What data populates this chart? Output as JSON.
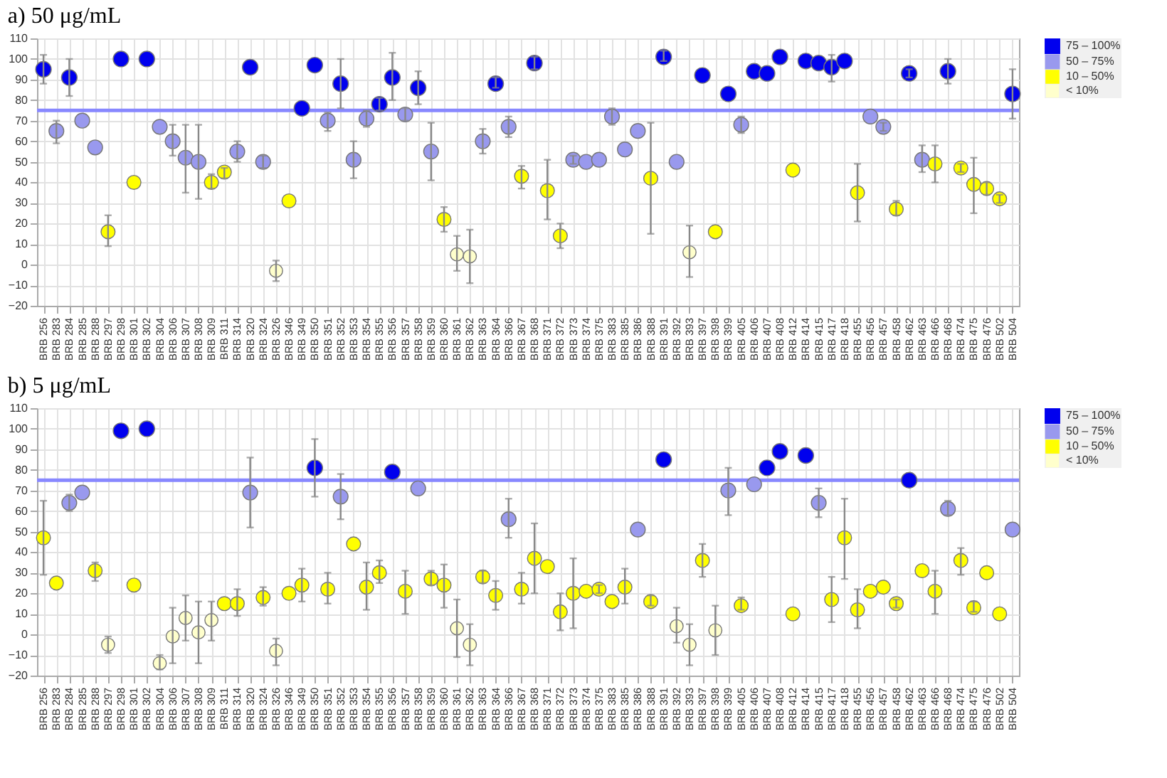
{
  "chart_data": [
    {
      "type": "scatter",
      "title": "a) 50 μg/mL",
      "categories": [
        "BRB 256",
        "BRB 283",
        "BRB 284",
        "BRB 285",
        "BRB 288",
        "BRB 297",
        "BRB 298",
        "BRB 301",
        "BRB 302",
        "BRB 304",
        "BRB 306",
        "BRB 307",
        "BRB 308",
        "BRB 309",
        "BRB 311",
        "BRB 314",
        "BRB 320",
        "BRB 324",
        "BRB 326",
        "BRB 346",
        "BRB 349",
        "BRB 350",
        "BRB 351",
        "BRB 352",
        "BRB 353",
        "BRB 354",
        "BRB 355",
        "BRB 356",
        "BRB 357",
        "BRB 358",
        "BRB 359",
        "BRB 360",
        "BRB 361",
        "BRB 362",
        "BRB 363",
        "BRB 364",
        "BRB 366",
        "BRB 367",
        "BRB 368",
        "BRB 371",
        "BRB 372",
        "BRB 373",
        "BRB 374",
        "BRB 375",
        "BRB 383",
        "BRB 385",
        "BRB 386",
        "BRB 388",
        "BRB 391",
        "BRB 392",
        "BRB 393",
        "BRB 397",
        "BRB 398",
        "BRB 399",
        "BRB 405",
        "BRB 406",
        "BRB 407",
        "BRB 408",
        "BRB 412",
        "BRB 414",
        "BRB 415",
        "BRB 417",
        "BRB 418",
        "BRB 455",
        "BRB 456",
        "BRB 457",
        "BRB 458",
        "BRB 462",
        "BRB 463",
        "BRB 466",
        "BRB 468",
        "BRB 474",
        "BRB 475",
        "BRB 476",
        "BRB 502",
        "BRB 504"
      ],
      "series": [
        {
          "name": "75 – 100%",
          "color": "#0000ee",
          "values": [
            95,
            null,
            91,
            null,
            null,
            null,
            100,
            null,
            100,
            null,
            null,
            null,
            null,
            null,
            null,
            null,
            96,
            null,
            null,
            null,
            76,
            97,
            null,
            88,
            null,
            null,
            78,
            91,
            null,
            86,
            null,
            null,
            null,
            null,
            null,
            88,
            null,
            null,
            98,
            null,
            null,
            null,
            null,
            null,
            null,
            null,
            null,
            null,
            101,
            null,
            null,
            92,
            null,
            83,
            null,
            94,
            93,
            101,
            null,
            99,
            98,
            96,
            99,
            null,
            null,
            null,
            null,
            93,
            null,
            null,
            94,
            null,
            null,
            null,
            null,
            83
          ],
          "errors": [
            [
              88,
              102
            ],
            null,
            [
              82,
              100
            ],
            null,
            null,
            null,
            null,
            null,
            null,
            null,
            null,
            null,
            null,
            null,
            null,
            null,
            null,
            null,
            null,
            null,
            null,
            null,
            null,
            [
              76,
              100
            ],
            null,
            null,
            [
              75,
              81
            ],
            [
              80,
              103
            ],
            null,
            [
              78,
              94
            ],
            null,
            null,
            null,
            null,
            null,
            [
              86,
              91
            ],
            null,
            null,
            [
              95,
              101
            ],
            null,
            null,
            null,
            null,
            null,
            null,
            null,
            null,
            null,
            [
              99,
              104
            ],
            null,
            null,
            null,
            null,
            null,
            null,
            null,
            null,
            null,
            null,
            null,
            null,
            [
              89,
              102
            ],
            null,
            null,
            null,
            null,
            null,
            [
              91,
              95
            ],
            null,
            null,
            [
              88,
              100
            ],
            null,
            null,
            null,
            null,
            [
              71,
              95
            ]
          ]
        },
        {
          "name": "50 – 75%",
          "color": "#9999ee",
          "values": [
            null,
            65,
            null,
            70,
            57,
            null,
            null,
            null,
            null,
            67,
            60,
            52,
            50,
            null,
            null,
            55,
            null,
            50,
            null,
            null,
            null,
            null,
            70,
            null,
            51,
            71,
            null,
            null,
            73,
            null,
            55,
            null,
            null,
            null,
            60,
            null,
            67,
            null,
            null,
            null,
            null,
            51,
            50,
            51,
            72,
            56,
            65,
            null,
            null,
            50,
            null,
            null,
            null,
            null,
            68,
            null,
            null,
            null,
            null,
            null,
            null,
            null,
            null,
            null,
            72,
            67,
            null,
            null,
            51,
            null,
            null,
            null,
            null,
            null,
            null,
            null
          ],
          "errors": [
            null,
            [
              59,
              70
            ],
            null,
            null,
            null,
            null,
            null,
            null,
            null,
            null,
            [
              53,
              68
            ],
            [
              35,
              68
            ],
            [
              32,
              68
            ],
            null,
            null,
            [
              50,
              60
            ],
            null,
            [
              47,
              53
            ],
            null,
            null,
            null,
            null,
            [
              65,
              74
            ],
            null,
            [
              42,
              60
            ],
            [
              67,
              75
            ],
            null,
            null,
            [
              70,
              76
            ],
            null,
            [
              41,
              69
            ],
            null,
            null,
            null,
            [
              54,
              66
            ],
            null,
            [
              62,
              72
            ],
            null,
            null,
            null,
            null,
            [
              49,
              53
            ],
            null,
            null,
            [
              68,
              76
            ],
            null,
            null,
            null,
            null,
            null,
            null,
            null,
            null,
            null,
            [
              64,
              72
            ],
            null,
            null,
            null,
            null,
            null,
            null,
            null,
            null,
            null,
            null,
            [
              65,
              69
            ],
            null,
            null,
            [
              45,
              58
            ],
            null,
            null,
            null,
            null,
            null,
            null,
            null
          ]
        },
        {
          "name": "10 – 50%",
          "color": "#ffff00",
          "values": [
            null,
            null,
            null,
            null,
            null,
            16,
            null,
            40,
            null,
            null,
            null,
            null,
            null,
            40,
            45,
            null,
            null,
            null,
            null,
            31,
            null,
            null,
            null,
            null,
            null,
            null,
            null,
            null,
            null,
            null,
            null,
            22,
            null,
            null,
            null,
            null,
            null,
            43,
            null,
            36,
            14,
            null,
            null,
            null,
            null,
            null,
            null,
            42,
            null,
            null,
            null,
            null,
            16,
            null,
            null,
            null,
            null,
            null,
            46,
            null,
            null,
            null,
            null,
            35,
            null,
            null,
            27,
            null,
            null,
            49,
            null,
            47,
            39,
            37,
            32,
            null
          ],
          "errors": [
            null,
            null,
            null,
            null,
            null,
            [
              9,
              24
            ],
            null,
            null,
            null,
            null,
            null,
            null,
            null,
            [
              37,
              44
            ],
            [
              42,
              47
            ],
            null,
            null,
            null,
            null,
            null,
            null,
            null,
            null,
            null,
            null,
            null,
            null,
            null,
            null,
            null,
            null,
            [
              16,
              28
            ],
            null,
            null,
            null,
            null,
            null,
            [
              37,
              48
            ],
            null,
            [
              22,
              51
            ],
            [
              8,
              20
            ],
            null,
            null,
            null,
            null,
            null,
            null,
            [
              15,
              69
            ],
            null,
            null,
            null,
            null,
            null,
            null,
            null,
            null,
            null,
            null,
            null,
            null,
            null,
            null,
            null,
            [
              21,
              49
            ],
            null,
            null,
            [
              24,
              31
            ],
            null,
            null,
            [
              40,
              58
            ],
            null,
            [
              45,
              49
            ],
            [
              25,
              52
            ],
            [
              34,
              40
            ],
            [
              30,
              34
            ],
            null
          ]
        },
        {
          "name": "< 10%",
          "color": "#ffffcc",
          "values": [
            null,
            null,
            null,
            null,
            null,
            null,
            null,
            null,
            null,
            null,
            null,
            null,
            null,
            null,
            null,
            null,
            null,
            null,
            -3,
            null,
            null,
            null,
            null,
            null,
            null,
            null,
            null,
            null,
            null,
            null,
            null,
            null,
            5,
            4,
            null,
            null,
            null,
            null,
            null,
            null,
            null,
            null,
            null,
            null,
            null,
            null,
            null,
            null,
            null,
            null,
            6,
            null,
            null,
            null,
            null,
            null,
            null,
            null,
            null,
            null,
            null,
            null,
            null,
            null,
            null,
            null,
            null,
            null,
            null,
            null,
            null,
            null,
            null,
            null,
            null,
            null
          ],
          "errors": [
            null,
            null,
            null,
            null,
            null,
            null,
            null,
            null,
            null,
            null,
            null,
            null,
            null,
            null,
            null,
            null,
            null,
            null,
            [
              -8,
              2
            ],
            null,
            null,
            null,
            null,
            null,
            null,
            null,
            null,
            null,
            null,
            null,
            null,
            null,
            [
              -3,
              14
            ],
            [
              -9,
              17
            ],
            null,
            null,
            null,
            null,
            null,
            null,
            null,
            null,
            null,
            null,
            null,
            null,
            null,
            null,
            null,
            null,
            [
              -6,
              19
            ],
            null,
            null,
            null,
            null,
            null,
            null,
            null,
            null,
            null,
            null,
            null,
            null,
            null,
            null,
            null,
            null,
            null,
            null,
            null,
            null,
            null,
            null,
            null,
            null,
            null
          ]
        }
      ],
      "ylim": [
        -20,
        110
      ],
      "yticks": [
        -20,
        -10,
        0,
        10,
        20,
        30,
        40,
        50,
        60,
        70,
        80,
        90,
        100,
        110
      ],
      "grid": true,
      "legend": "right",
      "marker": "circle",
      "ref_lines": [
        {
          "axis": "y",
          "value": 75,
          "color": "#8888ff"
        }
      ]
    },
    {
      "type": "scatter",
      "title": "b) 5 μg/mL",
      "categories": [
        "BRB 256",
        "BRB 283",
        "BRB 284",
        "BRB 285",
        "BRB 288",
        "BRB 297",
        "BRB 298",
        "BRB 301",
        "BRB 302",
        "BRB 304",
        "BRB 306",
        "BRB 307",
        "BRB 308",
        "BRB 309",
        "BRB 311",
        "BRB 314",
        "BRB 320",
        "BRB 324",
        "BRB 326",
        "BRB 346",
        "BRB 349",
        "BRB 350",
        "BRB 351",
        "BRB 352",
        "BRB 353",
        "BRB 354",
        "BRB 355",
        "BRB 356",
        "BRB 357",
        "BRB 358",
        "BRB 359",
        "BRB 360",
        "BRB 361",
        "BRB 362",
        "BRB 363",
        "BRB 364",
        "BRB 366",
        "BRB 367",
        "BRB 368",
        "BRB 371",
        "BRB 372",
        "BRB 373",
        "BRB 374",
        "BRB 375",
        "BRB 383",
        "BRB 385",
        "BRB 386",
        "BRB 388",
        "BRB 391",
        "BRB 392",
        "BRB 393",
        "BRB 397",
        "BRB 398",
        "BRB 399",
        "BRB 405",
        "BRB 406",
        "BRB 407",
        "BRB 408",
        "BRB 412",
        "BRB 414",
        "BRB 415",
        "BRB 417",
        "BRB 418",
        "BRB 455",
        "BRB 456",
        "BRB 457",
        "BRB 458",
        "BRB 462",
        "BRB 463",
        "BRB 466",
        "BRB 468",
        "BRB 474",
        "BRB 475",
        "BRB 476",
        "BRB 502",
        "BRB 504"
      ],
      "series": [
        {
          "name": "75 – 100%",
          "color": "#0000ee",
          "values": [
            null,
            null,
            null,
            null,
            null,
            null,
            99,
            null,
            100,
            null,
            null,
            null,
            null,
            null,
            null,
            null,
            null,
            null,
            null,
            null,
            null,
            81,
            null,
            null,
            null,
            null,
            null,
            79,
            null,
            null,
            null,
            null,
            null,
            null,
            null,
            null,
            null,
            null,
            null,
            null,
            null,
            null,
            null,
            null,
            null,
            null,
            null,
            null,
            85,
            null,
            null,
            null,
            null,
            null,
            null,
            null,
            81,
            89,
            null,
            87,
            null,
            null,
            null,
            null,
            null,
            null,
            null,
            75,
            null,
            null,
            null,
            null,
            null,
            null,
            null,
            null
          ],
          "errors": [
            null,
            null,
            null,
            null,
            null,
            null,
            null,
            null,
            null,
            null,
            null,
            null,
            null,
            null,
            null,
            null,
            null,
            null,
            null,
            null,
            null,
            [
              67,
              95
            ],
            null,
            null,
            null,
            null,
            null,
            null,
            null,
            null,
            null,
            null,
            null,
            null,
            null,
            null,
            null,
            null,
            null,
            null,
            null,
            null,
            null,
            null,
            null,
            null,
            null,
            null,
            null,
            null,
            null,
            null,
            null,
            null,
            null,
            null,
            null,
            null,
            null,
            null,
            null,
            null,
            null,
            null,
            null,
            null,
            null,
            null,
            null,
            null,
            null,
            null,
            null,
            null,
            null,
            null
          ]
        },
        {
          "name": "50 – 75%",
          "color": "#9999ee",
          "values": [
            null,
            null,
            64,
            69,
            null,
            null,
            null,
            null,
            null,
            null,
            null,
            null,
            null,
            null,
            null,
            null,
            69,
            null,
            null,
            null,
            null,
            null,
            null,
            67,
            null,
            null,
            null,
            null,
            null,
            71,
            null,
            null,
            null,
            null,
            null,
            null,
            56,
            null,
            null,
            null,
            null,
            null,
            null,
            null,
            null,
            null,
            51,
            null,
            null,
            null,
            null,
            null,
            null,
            70,
            null,
            73,
            null,
            null,
            null,
            null,
            64,
            null,
            null,
            null,
            null,
            null,
            null,
            null,
            null,
            null,
            61,
            null,
            null,
            null,
            null,
            51
          ],
          "errors": [
            null,
            null,
            [
              60,
              68
            ],
            null,
            null,
            null,
            null,
            null,
            null,
            null,
            null,
            null,
            null,
            null,
            null,
            null,
            [
              52,
              86
            ],
            null,
            null,
            null,
            null,
            null,
            null,
            [
              56,
              78
            ],
            null,
            null,
            null,
            null,
            null,
            null,
            null,
            null,
            null,
            null,
            null,
            null,
            [
              47,
              66
            ],
            null,
            null,
            null,
            null,
            null,
            null,
            null,
            null,
            null,
            null,
            null,
            null,
            null,
            null,
            null,
            null,
            [
              58,
              81
            ],
            null,
            null,
            null,
            null,
            null,
            null,
            [
              57,
              71
            ],
            null,
            null,
            null,
            null,
            null,
            null,
            null,
            null,
            null,
            [
              58,
              65
            ],
            null,
            null,
            null,
            null,
            null
          ]
        },
        {
          "name": "10 – 50%",
          "color": "#ffff00",
          "values": [
            47,
            25,
            null,
            null,
            31,
            null,
            null,
            24,
            null,
            null,
            null,
            null,
            null,
            null,
            15,
            15,
            null,
            18,
            null,
            20,
            24,
            null,
            22,
            null,
            44,
            23,
            30,
            null,
            21,
            null,
            27,
            24,
            null,
            null,
            28,
            19,
            null,
            22,
            37,
            33,
            11,
            20,
            21,
            22,
            16,
            23,
            null,
            16,
            null,
            null,
            null,
            36,
            null,
            null,
            14,
            null,
            null,
            null,
            10,
            null,
            null,
            17,
            47,
            12,
            21,
            23,
            15,
            null,
            31,
            21,
            null,
            36,
            13,
            30,
            10,
            null
          ],
          "errors": [
            [
              29,
              65
            ],
            null,
            null,
            null,
            [
              26,
              35
            ],
            null,
            null,
            null,
            null,
            null,
            null,
            null,
            null,
            null,
            null,
            [
              9,
              22
            ],
            null,
            [
              14,
              23
            ],
            null,
            null,
            [
              16,
              32
            ],
            null,
            [
              15,
              30
            ],
            null,
            null,
            [
              12,
              35
            ],
            [
              25,
              36
            ],
            null,
            [
              10,
              31
            ],
            null,
            [
              24,
              31
            ],
            [
              13,
              34
            ],
            null,
            null,
            [
              25,
              31
            ],
            [
              12,
              26
            ],
            null,
            [
              15,
              30
            ],
            [
              20,
              54
            ],
            null,
            [
              2,
              20
            ],
            [
              3,
              37
            ],
            null,
            [
              20,
              24
            ],
            null,
            [
              15,
              32
            ],
            null,
            [
              14,
              19
            ],
            null,
            null,
            null,
            [
              28,
              44
            ],
            null,
            null,
            [
              12,
              18
            ],
            null,
            null,
            null,
            null,
            null,
            null,
            [
              6,
              28
            ],
            [
              27,
              66
            ],
            [
              3,
              22
            ],
            null,
            null,
            [
              13,
              17
            ],
            null,
            null,
            [
              10,
              31
            ],
            null,
            [
              29,
              42
            ],
            [
              11,
              16
            ],
            null,
            null,
            null
          ]
        },
        {
          "name": "< 10%",
          "color": "#ffffcc",
          "values": [
            null,
            null,
            null,
            null,
            null,
            -5,
            null,
            null,
            null,
            -14,
            -1,
            8,
            1,
            7,
            null,
            null,
            null,
            null,
            -8,
            null,
            null,
            null,
            null,
            null,
            null,
            null,
            null,
            null,
            null,
            null,
            null,
            null,
            3,
            -5,
            null,
            null,
            null,
            null,
            null,
            null,
            null,
            null,
            null,
            null,
            null,
            null,
            null,
            null,
            null,
            4,
            -5,
            null,
            2,
            null,
            null,
            null,
            null,
            null,
            null,
            null,
            null,
            null,
            null,
            null,
            null,
            null,
            null,
            null,
            null,
            null,
            null,
            null,
            null,
            null,
            null,
            null
          ],
          "errors": [
            null,
            null,
            null,
            null,
            null,
            [
              -9,
              -1
            ],
            null,
            null,
            null,
            [
              -17,
              -10
            ],
            [
              -14,
              13
            ],
            [
              -3,
              19
            ],
            [
              -14,
              16
            ],
            [
              -3,
              16
            ],
            null,
            null,
            null,
            null,
            [
              -15,
              -2
            ],
            null,
            null,
            null,
            null,
            null,
            null,
            null,
            null,
            null,
            null,
            null,
            null,
            null,
            [
              -11,
              17
            ],
            [
              -15,
              5
            ],
            null,
            null,
            null,
            null,
            null,
            null,
            null,
            null,
            null,
            null,
            null,
            null,
            null,
            null,
            null,
            [
              -4,
              13
            ],
            [
              -15,
              5
            ],
            null,
            [
              -10,
              14
            ],
            null,
            null,
            null,
            null,
            null,
            null,
            null,
            null,
            null,
            null,
            null,
            null,
            null,
            null,
            null,
            null,
            null,
            null,
            null,
            null,
            null,
            null,
            null
          ]
        }
      ],
      "ylim": [
        -20,
        110
      ],
      "yticks": [
        -20,
        -10,
        0,
        10,
        20,
        30,
        40,
        50,
        60,
        70,
        80,
        90,
        100,
        110
      ],
      "grid": true,
      "legend": "right",
      "marker": "circle",
      "ref_lines": [
        {
          "axis": "y",
          "value": 75,
          "color": "#8888ff"
        }
      ]
    }
  ]
}
